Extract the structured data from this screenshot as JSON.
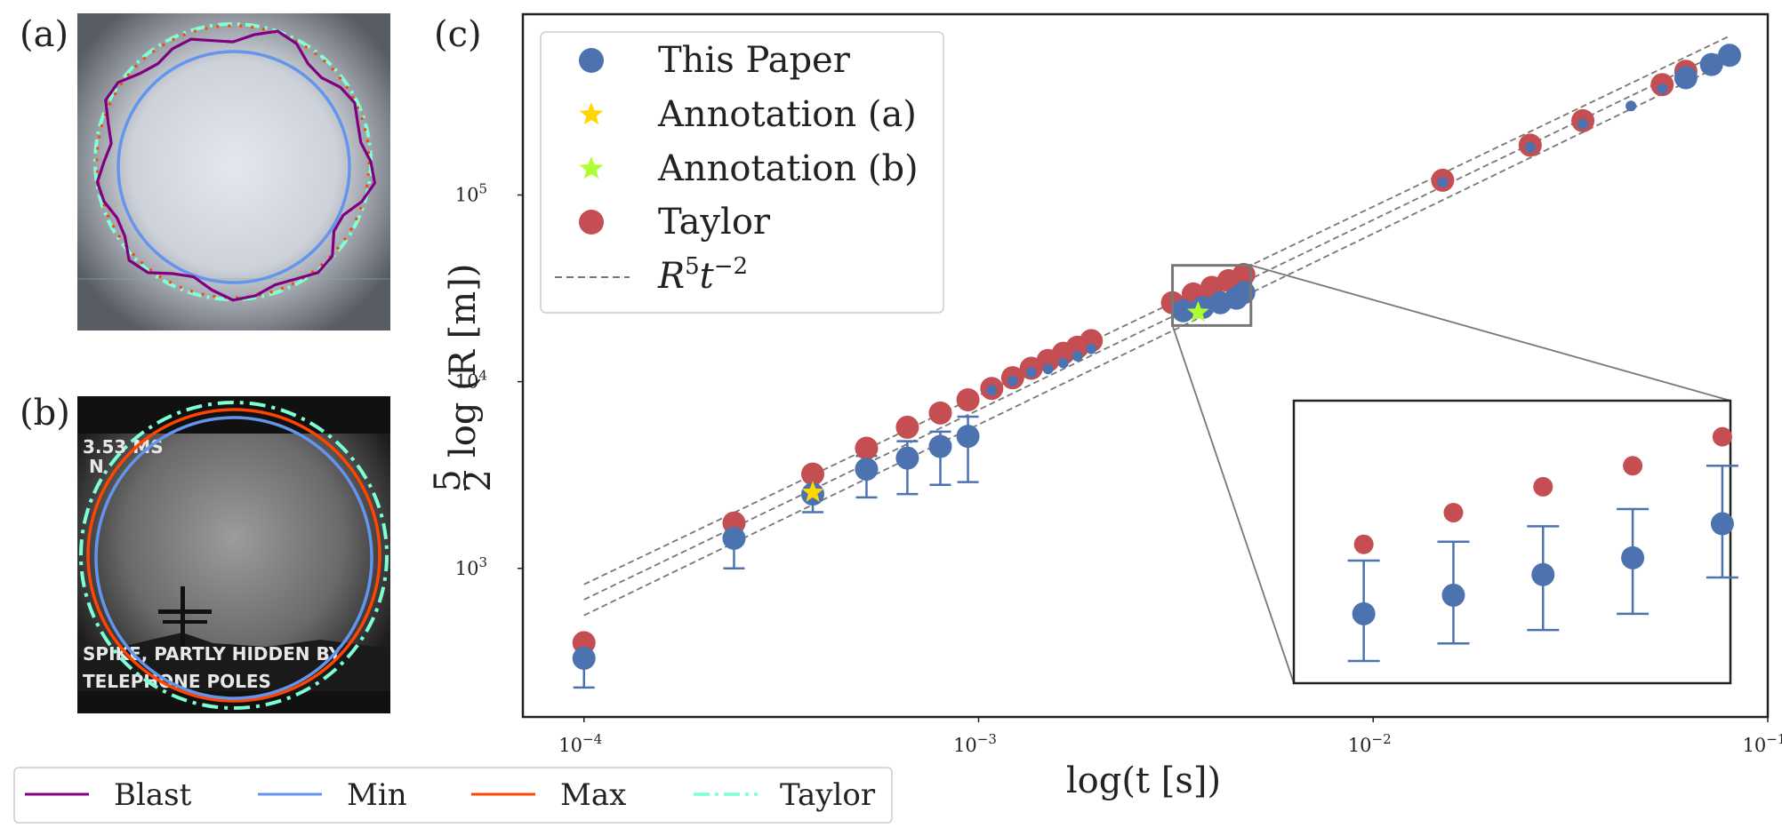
{
  "panels": {
    "a_label": "(a)",
    "b_label": "(b)",
    "c_label": "(c)",
    "b_photo_text": [
      "3.53 MS",
      "N",
      "SPIKE, PARTLY HIDDEN BY",
      "TELEPHONE POLES"
    ]
  },
  "colors": {
    "this_paper": "#4c72b0",
    "taylor": "#c44e52",
    "annotation_a": "#ffd700",
    "annotation_b": "#adff2f",
    "fit_line": "#777777",
    "blast": "#800080",
    "min": "#6495ed",
    "max": "#ff4500",
    "taylor_circle": "#7fffd4"
  },
  "bottom_legend": [
    {
      "label": "Blast",
      "style": "solid",
      "color": "#800080"
    },
    {
      "label": "Min",
      "style": "solid",
      "color": "#6495ed"
    },
    {
      "label": "Max",
      "style": "solid",
      "color": "#ff4500"
    },
    {
      "label": "Taylor",
      "style": "dashdot",
      "color": "#7fffd4"
    }
  ],
  "chart_data": {
    "type": "scatter",
    "xlabel": "log(t [s])",
    "ylabel": "5/2 log (R [m])",
    "ylabel_parts": {
      "num": "5",
      "den": "2",
      "rest": "log (R [m])"
    },
    "xscale": "log",
    "yscale": "log",
    "xlim": [
      7e-05,
      0.1
    ],
    "ylim": [
      160,
      930000
    ],
    "xticks": [
      {
        "value": 0.0001,
        "base": "10",
        "exp": "−4"
      },
      {
        "value": 0.001,
        "base": "10",
        "exp": "−3"
      },
      {
        "value": 0.01,
        "base": "10",
        "exp": "−2"
      },
      {
        "value": 0.1,
        "base": "10",
        "exp": "−1"
      }
    ],
    "yticks": [
      {
        "value": 1000,
        "base": "10",
        "exp": "3"
      },
      {
        "value": 10000,
        "base": "10",
        "exp": "4"
      },
      {
        "value": 100000,
        "base": "10",
        "exp": "5"
      }
    ],
    "grid": false,
    "legend_placement": "top-left",
    "legend": [
      {
        "label": "This Paper",
        "marker": "circle",
        "color": "#4c72b0"
      },
      {
        "label": "Annotation (a)",
        "marker": "star",
        "color": "#ffd700"
      },
      {
        "label": "Annotation (b)",
        "marker": "star",
        "color": "#adff2f"
      },
      {
        "label": "Taylor",
        "marker": "circle",
        "color": "#c44e52"
      },
      {
        "label": "R",
        "label_sup": "5",
        "label_mid": "t",
        "label_sup2": "−2",
        "marker": "dashed-line",
        "color": "#777777"
      }
    ],
    "series": [
      {
        "name": "This Paper",
        "points": [
          {
            "x": 0.0001,
            "y": 330,
            "ylo": 230
          },
          {
            "x": 0.00024,
            "y": 1450,
            "ylo": 1000
          },
          {
            "x": 0.00038,
            "y": 2500,
            "ylo": 2000
          },
          {
            "x": 0.00052,
            "y": 3400,
            "ylo": 2400,
            "yhi": 4000
          },
          {
            "x": 0.00066,
            "y": 3900,
            "ylo": 2500,
            "yhi": 4800
          },
          {
            "x": 0.0008,
            "y": 4500,
            "ylo": 2800,
            "yhi": 5400
          },
          {
            "x": 0.00094,
            "y": 5100,
            "ylo": 2900,
            "yhi": 6500
          },
          {
            "x": 0.00108,
            "y": 9000
          },
          {
            "x": 0.00122,
            "y": 10100
          },
          {
            "x": 0.00136,
            "y": 11200
          },
          {
            "x": 0.0015,
            "y": 11700
          },
          {
            "x": 0.00164,
            "y": 12600
          },
          {
            "x": 0.00178,
            "y": 13700
          },
          {
            "x": 0.00193,
            "y": 15000
          },
          {
            "x": 0.0033,
            "y": 24000
          },
          {
            "x": 0.0037,
            "y": 25000
          },
          {
            "x": 0.0041,
            "y": 26500
          },
          {
            "x": 0.0045,
            "y": 28000
          },
          {
            "x": 0.0047,
            "y": 30000
          },
          {
            "x": 0.015,
            "y": 117000
          },
          {
            "x": 0.025,
            "y": 180000
          },
          {
            "x": 0.034,
            "y": 240000
          },
          {
            "x": 0.045,
            "y": 300000
          },
          {
            "x": 0.054,
            "y": 370000
          },
          {
            "x": 0.062,
            "y": 425000
          },
          {
            "x": 0.072,
            "y": 500000
          },
          {
            "x": 0.08,
            "y": 560000
          }
        ]
      },
      {
        "name": "Taylor",
        "points": [
          {
            "x": 0.0001,
            "y": 400
          },
          {
            "x": 0.00024,
            "y": 1750
          },
          {
            "x": 0.00038,
            "y": 3200
          },
          {
            "x": 0.00052,
            "y": 4400
          },
          {
            "x": 0.00066,
            "y": 5700
          },
          {
            "x": 0.0008,
            "y": 6800
          },
          {
            "x": 0.00094,
            "y": 8000
          },
          {
            "x": 0.00108,
            "y": 9200
          },
          {
            "x": 0.00122,
            "y": 10500
          },
          {
            "x": 0.00136,
            "y": 11800
          },
          {
            "x": 0.0015,
            "y": 13000
          },
          {
            "x": 0.00164,
            "y": 14200
          },
          {
            "x": 0.00178,
            "y": 15300
          },
          {
            "x": 0.00193,
            "y": 16600
          },
          {
            "x": 0.0031,
            "y": 26500
          },
          {
            "x": 0.0035,
            "y": 29500
          },
          {
            "x": 0.0039,
            "y": 32000
          },
          {
            "x": 0.0043,
            "y": 34800
          },
          {
            "x": 0.0047,
            "y": 37500
          },
          {
            "x": 0.015,
            "y": 120000
          },
          {
            "x": 0.025,
            "y": 185000
          },
          {
            "x": 0.034,
            "y": 250000
          },
          {
            "x": 0.054,
            "y": 390000
          },
          {
            "x": 0.062,
            "y": 460000
          }
        ]
      },
      {
        "name": "Annotation (a)",
        "points": [
          {
            "x": 0.00038,
            "y": 2550
          }
        ]
      },
      {
        "name": "Annotation (b)",
        "points": [
          {
            "x": 0.0036,
            "y": 23500
          }
        ]
      }
    ],
    "fit_lines": [
      {
        "x0": 0.0001,
        "y0": 820,
        "x1": 0.08,
        "y1": 710000
      },
      {
        "x0": 0.0001,
        "y0": 680,
        "x1": 0.08,
        "y1": 610000
      },
      {
        "x0": 0.0001,
        "y0": 560,
        "x1": 0.08,
        "y1": 520000
      }
    ],
    "zoom_region": {
      "x": [
        0.0031,
        0.0049
      ],
      "y": [
        20000,
        42000
      ]
    },
    "inset": {
      "ylim": [
        20000,
        42000
      ],
      "this_paper": [
        {
          "y": 24000,
          "ylo": 21200,
          "yhi": 27600
        },
        {
          "y": 25200,
          "ylo": 22200,
          "yhi": 29000
        },
        {
          "y": 26600,
          "ylo": 23000,
          "yhi": 30200
        },
        {
          "y": 27800,
          "ylo": 24000,
          "yhi": 31600
        },
        {
          "y": 30400,
          "ylo": 26400,
          "yhi": 35400
        }
      ],
      "taylor": [
        28800,
        31300,
        33500,
        35400,
        38200
      ]
    }
  }
}
